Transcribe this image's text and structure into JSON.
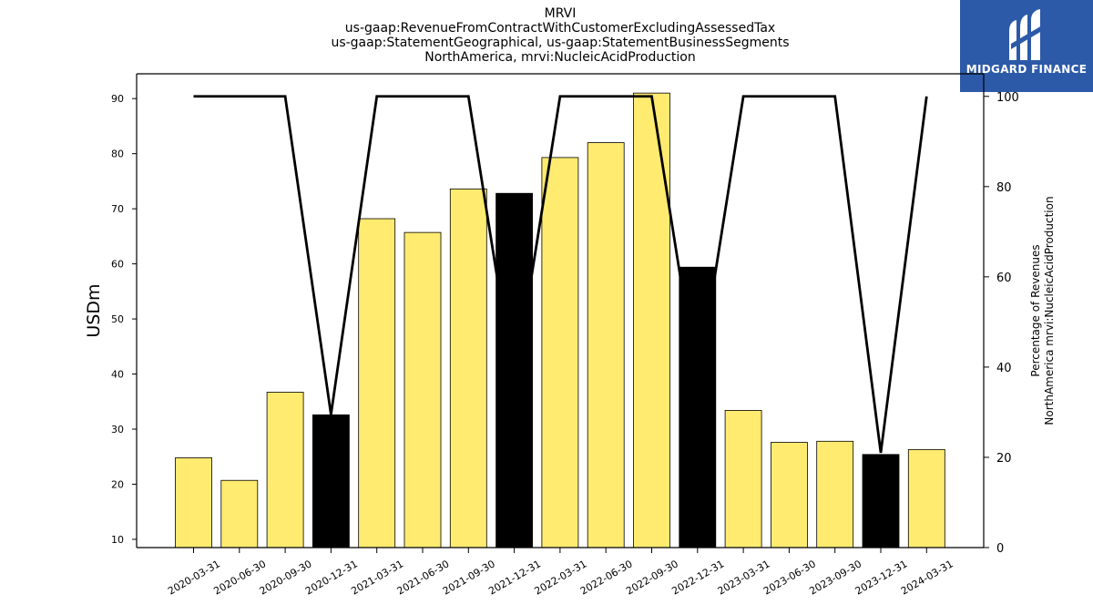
{
  "header": {
    "title_lines": [
      "MRVI",
      "us-gaap:RevenueFromContractWithCustomerExcludingAssessedTax",
      "us-gaap:StatementGeographical, us-gaap:StatementBusinessSegments",
      "NorthAmerica, mrvi:NucleicAcidProduction"
    ]
  },
  "logo": {
    "text": "MIDGARD FINANCE",
    "icon": "midgard-logo-icon",
    "bg_color": "#2c5aa8"
  },
  "chart_data": {
    "type": "bar",
    "categories": [
      "2020-03-31",
      "2020-06-30",
      "2020-09-30",
      "2020-12-31",
      "2021-03-31",
      "2021-06-30",
      "2021-09-30",
      "2021-12-31",
      "2022-03-31",
      "2022-06-30",
      "2022-09-30",
      "2022-12-31",
      "2023-03-31",
      "2023-06-30",
      "2023-09-30",
      "2023-12-31",
      "2024-03-31"
    ],
    "series": [
      {
        "kind": "bar",
        "axis": "left",
        "values": [
          24.8,
          20.7,
          36.7,
          32.6,
          68.2,
          65.7,
          73.6,
          72.8,
          79.3,
          82.0,
          91.0,
          59.4,
          33.4,
          27.6,
          27.8,
          25.4,
          26.3
        ],
        "colors": [
          "#ffeb70",
          "#ffeb70",
          "#ffeb70",
          "#000000",
          "#ffeb70",
          "#ffeb70",
          "#ffeb70",
          "#000000",
          "#ffeb70",
          "#ffeb70",
          "#ffeb70",
          "#000000",
          "#ffeb70",
          "#ffeb70",
          "#ffeb70",
          "#000000",
          "#ffeb70"
        ]
      },
      {
        "kind": "line",
        "axis": "right",
        "values": [
          100,
          100,
          100,
          29.5,
          100,
          100,
          100,
          36,
          100,
          100,
          100,
          36,
          100,
          100,
          100,
          21,
          100
        ],
        "color": "#000000"
      }
    ],
    "ylabel": "USDm",
    "ylabel_right": [
      "Percentage of Revenues",
      "NorthAmerica mrvi:NucleicAcidProduction"
    ],
    "ylim": [
      8.5,
      94.5
    ],
    "ylim_right": [
      0,
      105
    ],
    "yticks": [
      10,
      20,
      30,
      40,
      50,
      60,
      70,
      80,
      90
    ],
    "yticks_right": [
      0,
      20,
      40,
      60,
      80,
      100
    ],
    "bar_color": "#ffeb70",
    "highlight_color": "#000000",
    "grid": false
  }
}
